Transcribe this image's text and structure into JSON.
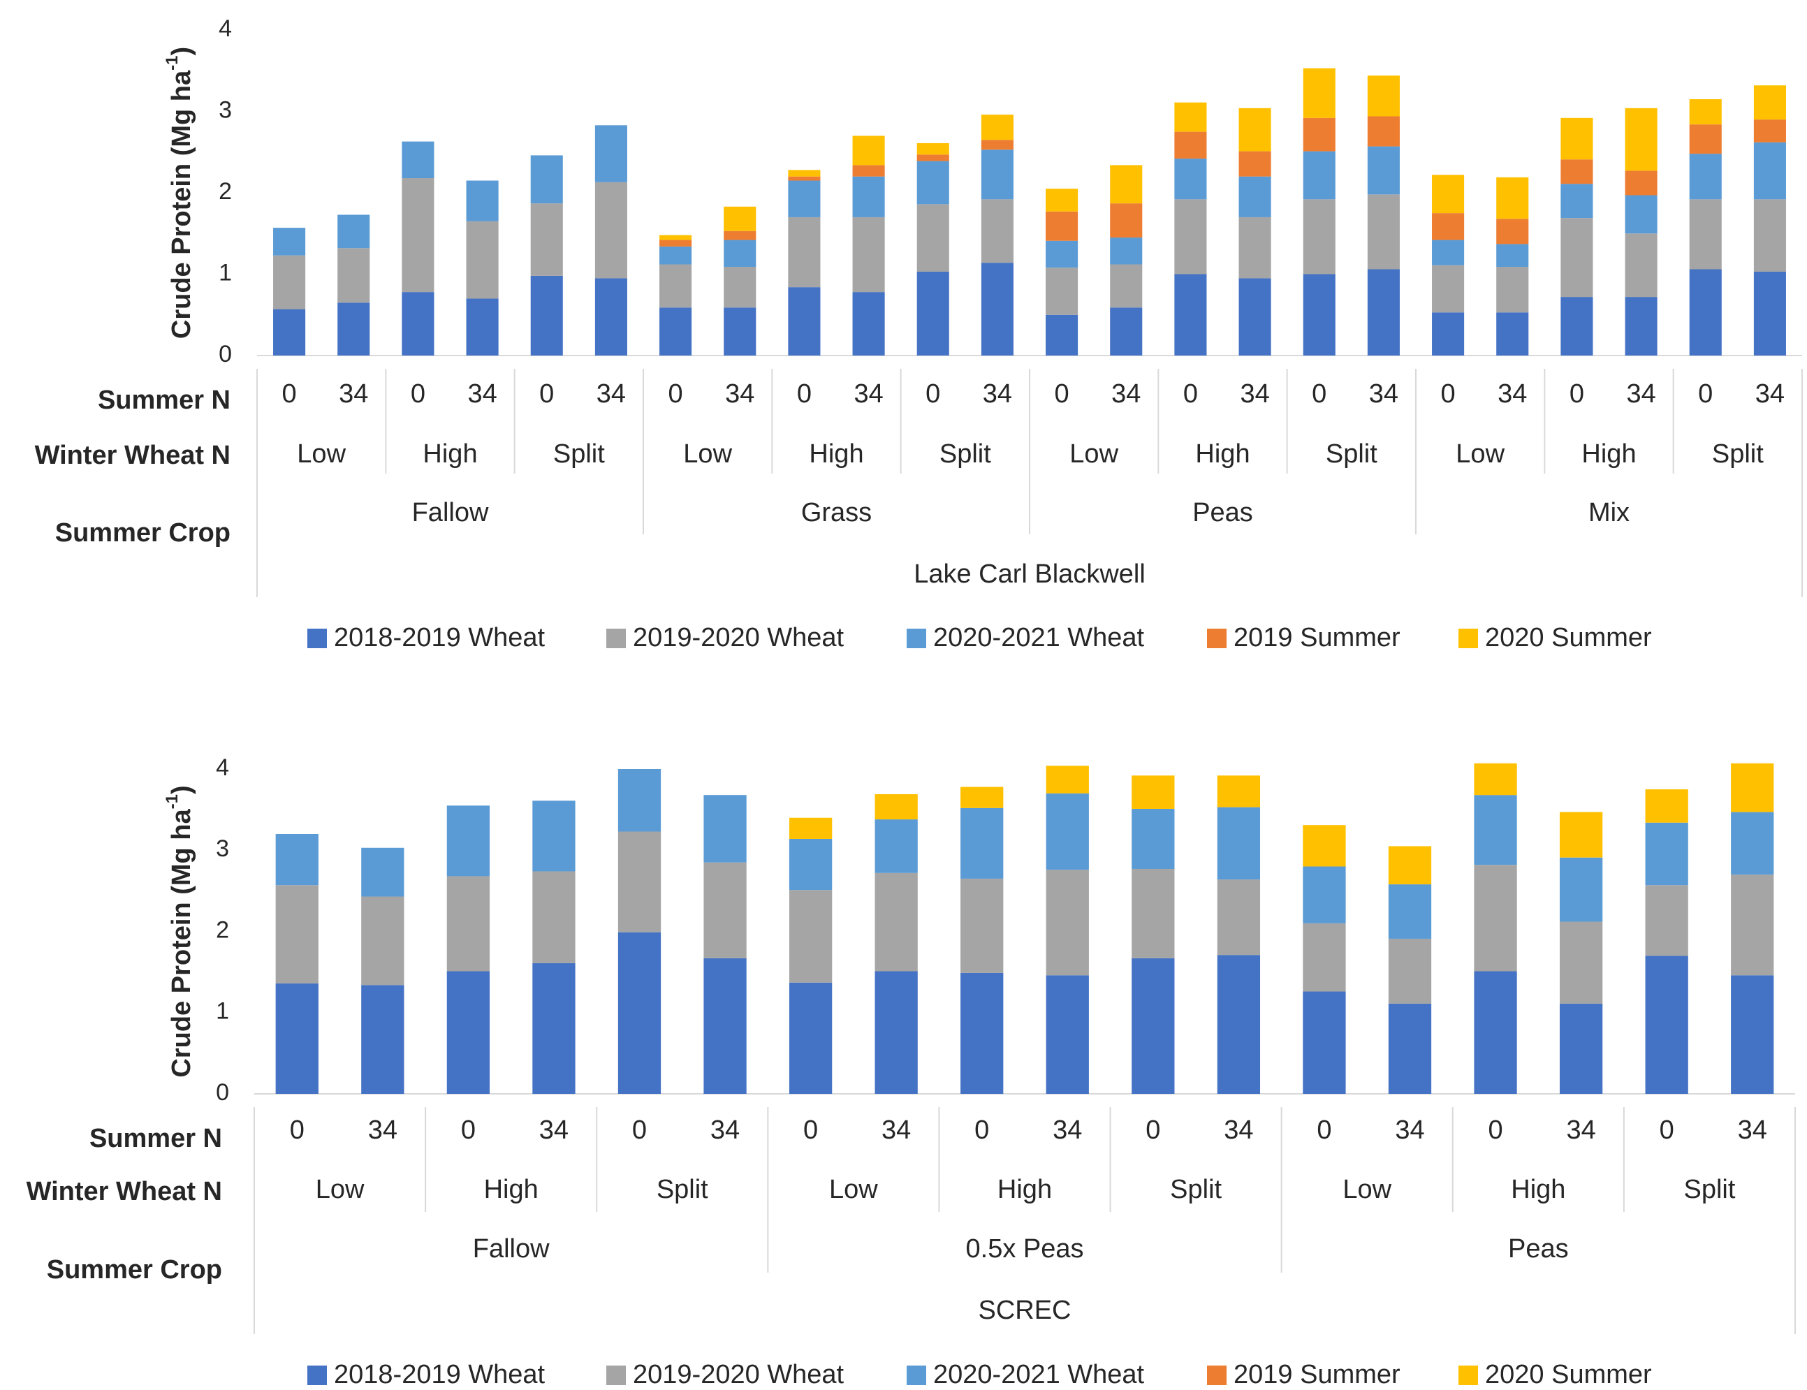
{
  "colors": {
    "s2018_2019_wheat": "#4472C4",
    "s2019_2020_wheat": "#A5A5A5",
    "s2020_2021_wheat": "#5B9BD5",
    "s2019_summer": "#ED7D31",
    "s2020_summer": "#FFC000",
    "axis": "#D9D9D9",
    "text": "#262626"
  },
  "chart_data": [
    {
      "type": "bar",
      "stacked": true,
      "site": "Lake Carl Blackwell",
      "ylabel": "Crude Protein (Mg ha",
      "ylabel_sup": "-1",
      "ylabel_tail": ")",
      "ylim": [
        0,
        4
      ],
      "yticks": [
        "0",
        "1",
        "2",
        "3",
        "4"
      ],
      "row_labels": [
        "Summer N",
        "Winter Wheat N",
        "Summer Crop"
      ],
      "summer_n": [
        "0",
        "34",
        "0",
        "34",
        "0",
        "34",
        "0",
        "34",
        "0",
        "34",
        "0",
        "34",
        "0",
        "34",
        "0",
        "34",
        "0",
        "34",
        "0",
        "34",
        "0",
        "34",
        "0",
        "34"
      ],
      "winter_wheat_n": [
        "Low",
        "High",
        "Split",
        "Low",
        "High",
        "Split",
        "Low",
        "High",
        "Split",
        "Low",
        "High",
        "Split"
      ],
      "summer_crop": [
        "Fallow",
        "Grass",
        "Peas",
        "Mix"
      ],
      "series": [
        {
          "name": "2018-2019 Wheat",
          "values": [
            0.57,
            0.65,
            0.78,
            0.7,
            0.98,
            0.95,
            0.59,
            0.59,
            0.84,
            0.78,
            1.03,
            1.14,
            0.5,
            0.59,
            1.0,
            0.95,
            1.0,
            1.06,
            0.53,
            0.53,
            0.72,
            0.72,
            1.06,
            1.03
          ]
        },
        {
          "name": "2019-2020 Wheat",
          "values": [
            0.66,
            0.67,
            1.4,
            0.95,
            0.89,
            1.18,
            0.53,
            0.5,
            0.86,
            0.92,
            0.83,
            0.78,
            0.58,
            0.53,
            0.92,
            0.75,
            0.92,
            0.92,
            0.58,
            0.56,
            0.97,
            0.78,
            0.86,
            0.89
          ]
        },
        {
          "name": "2020-2021 Wheat",
          "values": [
            0.34,
            0.41,
            0.45,
            0.5,
            0.59,
            0.7,
            0.22,
            0.33,
            0.45,
            0.5,
            0.53,
            0.61,
            0.33,
            0.33,
            0.5,
            0.5,
            0.59,
            0.59,
            0.31,
            0.28,
            0.42,
            0.47,
            0.56,
            0.7
          ]
        },
        {
          "name": "2019 Summer",
          "values": [
            0,
            0,
            0,
            0,
            0,
            0,
            0.08,
            0.11,
            0.05,
            0.14,
            0.08,
            0.12,
            0.36,
            0.42,
            0.33,
            0.31,
            0.41,
            0.37,
            0.33,
            0.31,
            0.3,
            0.3,
            0.36,
            0.28
          ]
        },
        {
          "name": "2020 Summer",
          "values": [
            0,
            0,
            0,
            0,
            0,
            0,
            0.06,
            0.3,
            0.08,
            0.36,
            0.14,
            0.31,
            0.28,
            0.47,
            0.36,
            0.53,
            0.61,
            0.5,
            0.47,
            0.51,
            0.51,
            0.77,
            0.31,
            0.42
          ]
        }
      ]
    },
    {
      "type": "bar",
      "stacked": true,
      "site": "SCREC",
      "ylabel": "Crude Protein (Mg ha",
      "ylabel_sup": "-1",
      "ylabel_tail": ")",
      "ylim": [
        0,
        4
      ],
      "yticks": [
        "0",
        "1",
        "2",
        "3",
        "4"
      ],
      "row_labels": [
        "Summer N",
        "Winter Wheat N",
        "Summer Crop"
      ],
      "summer_n": [
        "0",
        "34",
        "0",
        "34",
        "0",
        "34",
        "0",
        "34",
        "0",
        "34",
        "0",
        "34",
        "0",
        "34",
        "0",
        "34",
        "0",
        "34"
      ],
      "winter_wheat_n": [
        "Low",
        "High",
        "Split",
        "Low",
        "High",
        "Split",
        "Low",
        "High",
        "Split"
      ],
      "summer_crop": [
        "Fallow",
        "0.5x Peas",
        "Peas"
      ],
      "series": [
        {
          "name": "2018-2019 Wheat",
          "values": [
            1.36,
            1.34,
            1.51,
            1.61,
            1.99,
            1.67,
            1.37,
            1.51,
            1.49,
            1.46,
            1.67,
            1.71,
            1.26,
            1.11,
            1.51,
            1.11,
            1.7,
            1.46
          ]
        },
        {
          "name": "2019-2020 Wheat",
          "values": [
            1.21,
            1.09,
            1.17,
            1.13,
            1.24,
            1.18,
            1.14,
            1.21,
            1.16,
            1.3,
            1.1,
            0.93,
            0.84,
            0.8,
            1.31,
            1.01,
            0.87,
            1.24
          ]
        },
        {
          "name": "2020-2021 Wheat",
          "values": [
            0.63,
            0.6,
            0.87,
            0.87,
            0.77,
            0.83,
            0.63,
            0.66,
            0.87,
            0.94,
            0.74,
            0.89,
            0.7,
            0.67,
            0.86,
            0.79,
            0.77,
            0.77
          ]
        },
        {
          "name": "2019 Summer",
          "values": [
            0,
            0,
            0,
            0,
            0,
            0,
            0,
            0,
            0,
            0,
            0,
            0,
            0,
            0,
            0,
            0,
            0,
            0
          ]
        },
        {
          "name": "2020 Summer",
          "values": [
            0,
            0,
            0,
            0,
            0,
            0,
            0.26,
            0.31,
            0.26,
            0.34,
            0.41,
            0.39,
            0.51,
            0.47,
            0.39,
            0.56,
            0.41,
            0.6
          ]
        }
      ]
    }
  ]
}
